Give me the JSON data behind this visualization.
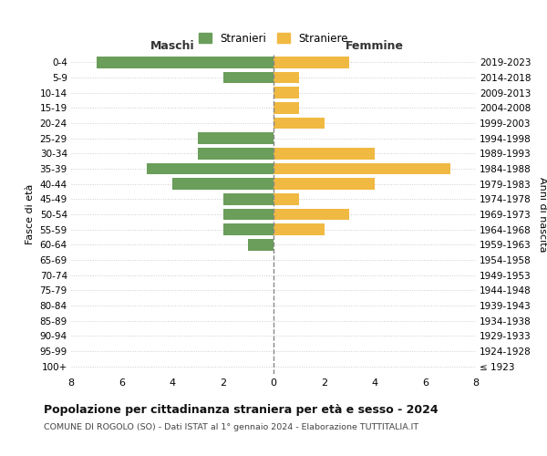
{
  "age_groups": [
    "100+",
    "95-99",
    "90-94",
    "85-89",
    "80-84",
    "75-79",
    "70-74",
    "65-69",
    "60-64",
    "55-59",
    "50-54",
    "45-49",
    "40-44",
    "35-39",
    "30-34",
    "25-29",
    "20-24",
    "15-19",
    "10-14",
    "5-9",
    "0-4"
  ],
  "birth_years": [
    "≤ 1923",
    "1924-1928",
    "1929-1933",
    "1934-1938",
    "1939-1943",
    "1944-1948",
    "1949-1953",
    "1954-1958",
    "1959-1963",
    "1964-1968",
    "1969-1973",
    "1974-1978",
    "1979-1983",
    "1984-1988",
    "1989-1993",
    "1994-1998",
    "1999-2003",
    "2004-2008",
    "2009-2013",
    "2014-2018",
    "2019-2023"
  ],
  "maschi": [
    0,
    0,
    0,
    0,
    0,
    0,
    0,
    0,
    1,
    2,
    2,
    2,
    4,
    5,
    3,
    3,
    0,
    0,
    0,
    2,
    7
  ],
  "femmine": [
    0,
    0,
    0,
    0,
    0,
    0,
    0,
    0,
    0,
    2,
    3,
    1,
    4,
    7,
    4,
    0,
    2,
    1,
    1,
    1,
    3
  ],
  "maschi_color": "#6a9e5a",
  "femmine_color": "#f0b942",
  "title_main": "Popolazione per cittadinanza straniera per età e sesso - 2024",
  "title_sub": "COMUNE DI ROGOLO (SO) - Dati ISTAT al 1° gennaio 2024 - Elaborazione TUTTITALIA.IT",
  "label_left": "Maschi",
  "label_right": "Femmine",
  "ylabel_left": "Fasce di età",
  "ylabel_right": "Anni di nascita",
  "legend_maschi": "Stranieri",
  "legend_femmine": "Straniere",
  "xlim": 8,
  "background_color": "#ffffff",
  "grid_color": "#cccccc"
}
